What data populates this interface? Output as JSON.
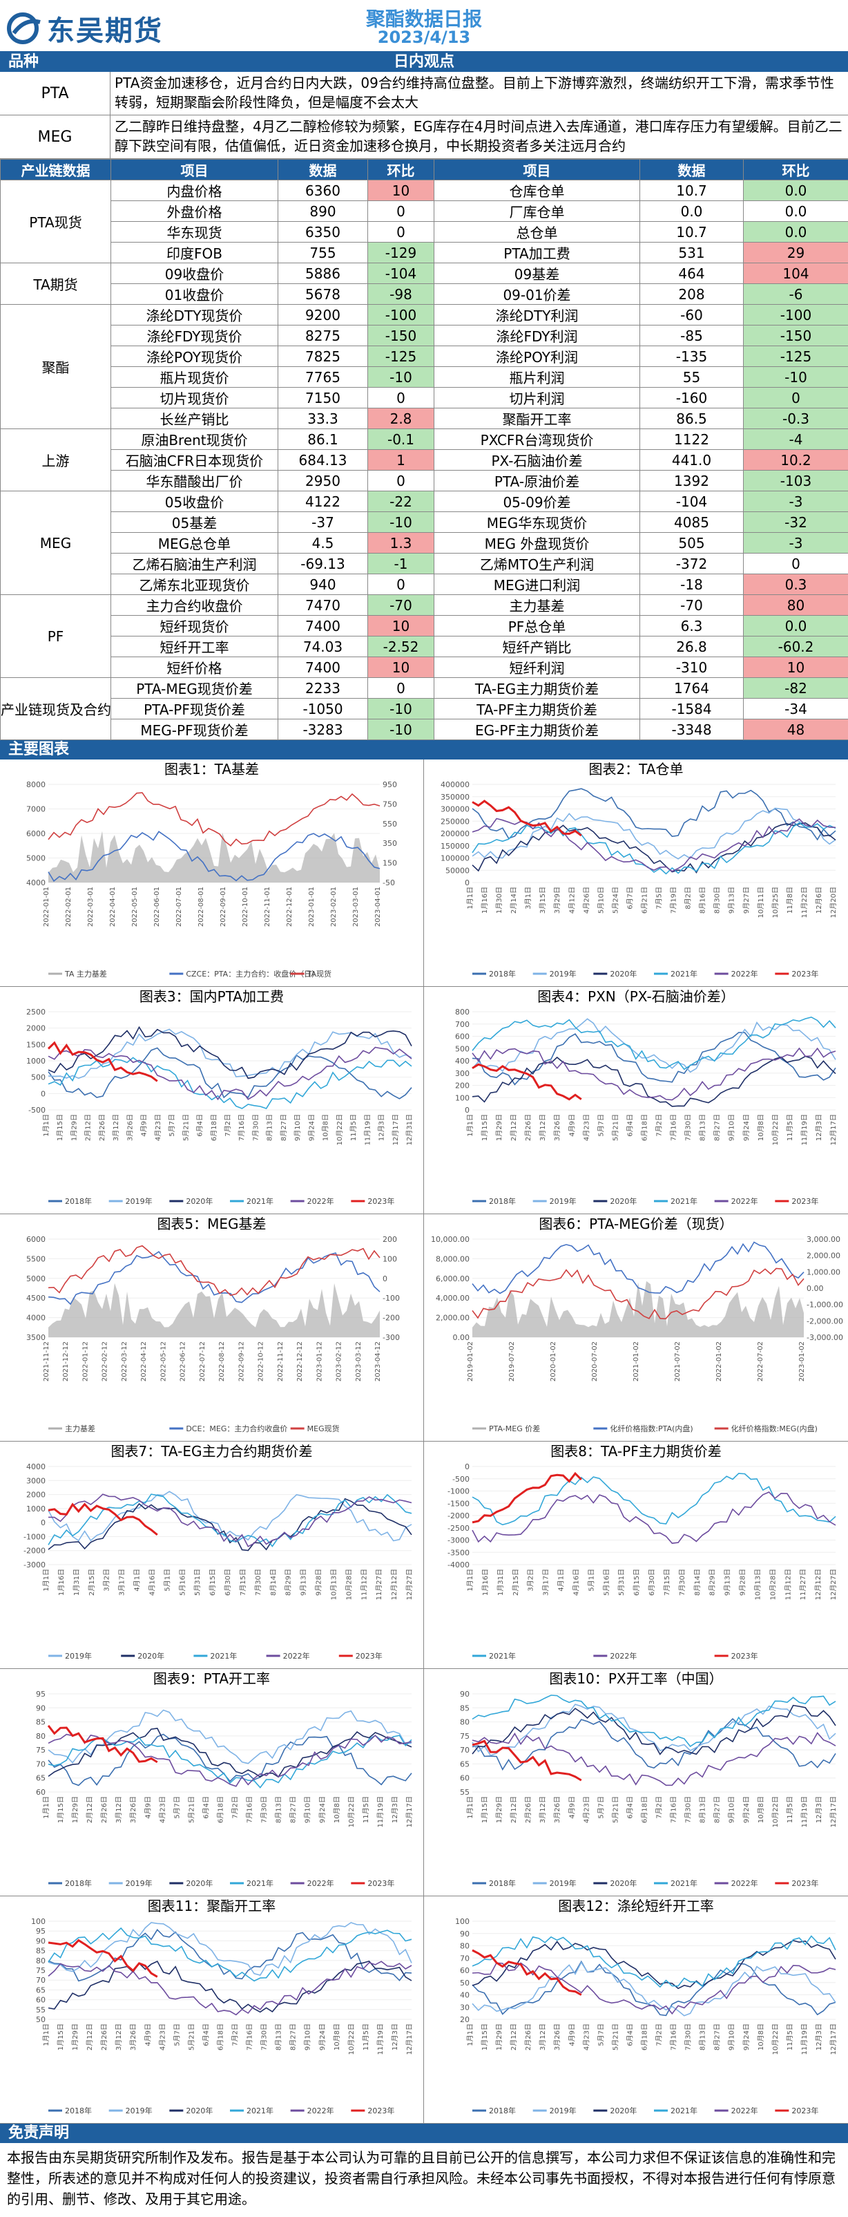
{
  "header": {
    "company": "东吴期货",
    "title": "聚酯数据日报",
    "date": "2023/4/13"
  },
  "view_bar": {
    "left": "品种",
    "center": "日内观点"
  },
  "views": [
    {
      "name": "PTA",
      "text": "PTA资金加速移仓，近月合约日内大跌，09合约维持高位盘整。目前上下游博弈激烈，终端纺织开工下滑，需求季节性转弱，短期聚酯会阶段性降负，但是幅度不会太大"
    },
    {
      "name": "MEG",
      "text": "乙二醇昨日维持盘整，4月乙二醇检修较为频繁，EG库存在4月时间点进入去库通道，港口库存压力有望缓解。目前乙二醇下跌空间有限，估值偏低，近日资金加速移仓换月，中长期投资者多关注远月合约"
    }
  ],
  "table_headers": [
    "产业链数据",
    "项目",
    "数据",
    "环比",
    "项目",
    "数据",
    "环比"
  ],
  "groups": [
    {
      "name": "PTA现货",
      "rows": [
        [
          "内盘价格",
          "6360",
          "10",
          "up",
          "仓库仓单",
          "10.7",
          "0.0",
          "dn"
        ],
        [
          "外盘价格",
          "890",
          "0",
          "",
          "厂库仓单",
          "0.0",
          "0.0",
          ""
        ],
        [
          "华东现货",
          "6350",
          "0",
          "",
          "总仓单",
          "10.7",
          "0.0",
          "dn"
        ],
        [
          "印度FOB",
          "755",
          "-129",
          "dn",
          "PTA加工费",
          "531",
          "29",
          "up"
        ]
      ]
    },
    {
      "name": "TA期货",
      "rows": [
        [
          "09收盘价",
          "5886",
          "-104",
          "dn",
          "09基差",
          "464",
          "104",
          "up"
        ],
        [
          "01收盘价",
          "5678",
          "-98",
          "dn",
          "09-01价差",
          "208",
          "-6",
          "dn"
        ]
      ]
    },
    {
      "name": "聚酯",
      "rows": [
        [
          "涤纶DTY现货价",
          "9200",
          "-100",
          "dn",
          "涤纶DTY利润",
          "-60",
          "-100",
          "dn"
        ],
        [
          "涤纶FDY现货价",
          "8275",
          "-150",
          "dn",
          "涤纶FDY利润",
          "-85",
          "-150",
          "dn"
        ],
        [
          "涤纶POY现货价",
          "7825",
          "-125",
          "dn",
          "涤纶POY利润",
          "-135",
          "-125",
          "dn"
        ],
        [
          "瓶片现货价",
          "7765",
          "-10",
          "dn",
          "瓶片利润",
          "55",
          "-10",
          "dn"
        ],
        [
          "切片现货价",
          "7150",
          "0",
          "",
          "切片利润",
          "-160",
          "0",
          "dn"
        ],
        [
          "长丝产销比",
          "33.3",
          "2.8",
          "up",
          "聚酯开工率",
          "86.5",
          "-0.3",
          "dn"
        ]
      ]
    },
    {
      "name": "上游",
      "rows": [
        [
          "原油Brent现货价",
          "86.1",
          "-0.1",
          "dn",
          "PXCFR台湾现货价",
          "1122",
          "-4",
          "dn"
        ],
        [
          "石脑油CFR日本现货价",
          "684.13",
          "1",
          "up",
          "PX-石脑油价差",
          "441.0",
          "10.2",
          "up"
        ],
        [
          "华东醋酸出厂价",
          "2950",
          "0",
          "",
          "PTA-原油价差",
          "1392",
          "-103",
          "dn"
        ]
      ]
    },
    {
      "name": "MEG",
      "rows": [
        [
          "05收盘价",
          "4122",
          "-22",
          "dn",
          "05-09价差",
          "-104",
          "-3",
          "dn"
        ],
        [
          "05基差",
          "-37",
          "-10",
          "dn",
          "MEG华东现货价",
          "4085",
          "-32",
          "dn"
        ],
        [
          "MEG总仓单",
          "4.5",
          "1.3",
          "up",
          "MEG 外盘现货价",
          "505",
          "-3",
          "dn"
        ],
        [
          "乙烯石脑油生产利润",
          "-69.13",
          "-1",
          "dn",
          "乙烯MTO生产利润",
          "-372",
          "0",
          ""
        ],
        [
          "乙烯东北亚现货价",
          "940",
          "0",
          "",
          "MEG进口利润",
          "-18",
          "0.3",
          "up"
        ]
      ]
    },
    {
      "name": "PF",
      "rows": [
        [
          "主力合约收盘价",
          "7470",
          "-70",
          "dn",
          "主力基差",
          "-70",
          "80",
          "up"
        ],
        [
          "短纤现货价",
          "7400",
          "10",
          "up",
          "PF总仓单",
          "6.3",
          "0.0",
          "dn"
        ],
        [
          "短纤开工率",
          "74.03",
          "-2.52",
          "dn",
          "短纤产销比",
          "26.8",
          "-60.2",
          "dn"
        ],
        [
          "短纤价格",
          "7400",
          "10",
          "up",
          "短纤利润",
          "-310",
          "10",
          "up"
        ]
      ]
    },
    {
      "name": "产业链现货及合约价差",
      "rows": [
        [
          "PTA-MEG现货价差",
          "2233",
          "0",
          "",
          "TA-EG主力期货价差",
          "1764",
          "-82",
          "dn"
        ],
        [
          "PTA-PF现货价差",
          "-1050",
          "-10",
          "dn",
          "TA-PF主力期货价差",
          "-1584",
          "-34",
          ""
        ],
        [
          "MEG-PF现货价差",
          "-3283",
          "-10",
          "dn",
          "EG-PF主力期货价差",
          "-3348",
          "48",
          "up"
        ]
      ]
    }
  ],
  "charts_bar": "主要图表",
  "charts": [
    {
      "title": "图表1：TA基差",
      "legend": [
        "TA 主力基差",
        "CZCE：PTA：主力合约：收盘价（日）",
        "TA现货"
      ],
      "xticks": [
        "2022-01-01",
        "2022-02-01",
        "2022-03-01",
        "2022-04-01",
        "2022-05-01",
        "2022-06-01",
        "2022-07-01",
        "2022-08-01",
        "2022-09-01",
        "2022-10-01",
        "2022-11-01",
        "2022-12-01",
        "2023-01-01",
        "2023-02-01",
        "2023-03-01",
        "2023-04-01"
      ],
      "yleft": [
        "8000",
        "7000",
        "6000",
        "5000",
        "4000"
      ],
      "yright": [
        "950",
        "750",
        "550",
        "350",
        "150",
        "-50"
      ]
    },
    {
      "title": "图表2：TA仓单",
      "legend": [
        "2018年",
        "2019年",
        "2020年",
        "2021年",
        "2022年",
        "2023年"
      ],
      "xticks": [
        "1月1日",
        "1月16日",
        "1月30日",
        "2月14日",
        "3月1日",
        "3月15日",
        "3月29日",
        "4月12日",
        "4月26日",
        "5月10日",
        "5月24日",
        "6月7日",
        "6月21日",
        "7月5日",
        "7月19日",
        "8月2日",
        "8月16日",
        "8月30日",
        "9月13日",
        "9月27日",
        "10月11日",
        "10月25日",
        "11月8日",
        "11月22日",
        "12月6日",
        "12月20日"
      ],
      "yleft": [
        "400000",
        "350000",
        "300000",
        "250000",
        "200000",
        "150000",
        "100000",
        "50000",
        "0"
      ]
    },
    {
      "title": "图表3：国内PTA加工费",
      "legend": [
        "2018年",
        "2019年",
        "2020年",
        "2021年",
        "2022年",
        "2023年"
      ],
      "xticks": [
        "1月1日",
        "1月15日",
        "1月29日",
        "2月12日",
        "2月26日",
        "3月12日",
        "3月26日",
        "4月9日",
        "4月23日",
        "5月7日",
        "5月21日",
        "6月4日",
        "6月18日",
        "7月2日",
        "7月16日",
        "7月30日",
        "8月13日",
        "8月27日",
        "9月10日",
        "9月24日",
        "10月8日",
        "10月22日",
        "11月5日",
        "11月19日",
        "12月3日",
        "12月17日",
        "12月31日"
      ],
      "yleft": [
        "2500",
        "2000",
        "1500",
        "1000",
        "500",
        "0",
        "-500"
      ]
    },
    {
      "title": "图表4：PXN（PX-石脑油价差）",
      "legend": [
        "2018年",
        "2019年",
        "2020年",
        "2021年",
        "2022年",
        "2023年"
      ],
      "xticks": [
        "1月1日",
        "1月15日",
        "1月29日",
        "2月12日",
        "2月26日",
        "3月12日",
        "3月26日",
        "4月9日",
        "4月23日",
        "5月7日",
        "5月21日",
        "6月4日",
        "6月18日",
        "7月2日",
        "7月16日",
        "7月30日",
        "8月13日",
        "8月27日",
        "9月10日",
        "9月24日",
        "10月8日",
        "10月22日",
        "11月5日",
        "11月19日",
        "12月3日",
        "12月17日"
      ],
      "yleft": [
        "800",
        "700",
        "600",
        "500",
        "400",
        "300",
        "200",
        "100",
        "0"
      ]
    },
    {
      "title": "图表5：MEG基差",
      "legend": [
        "主力基差",
        "DCE：MEG：主力合约收盘价",
        "MEG现货"
      ],
      "xticks": [
        "2021-11-12",
        "2021-12-12",
        "2022-01-12",
        "2022-02-12",
        "2022-03-12",
        "2022-04-12",
        "2022-05-12",
        "2022-06-12",
        "2022-07-12",
        "2022-08-12",
        "2022-09-12",
        "2022-10-12",
        "2022-11-12",
        "2022-12-12",
        "2023-01-12",
        "2023-02-12",
        "2023-03-12",
        "2023-04-12"
      ],
      "yleft": [
        "6000",
        "5500",
        "5000",
        "4500",
        "4000",
        "3500"
      ],
      "yright": [
        "200",
        "100",
        "0",
        "-100",
        "-200",
        "-300"
      ]
    },
    {
      "title": "图表6：PTA-MEG价差（现货）",
      "legend": [
        "PTA-MEG 价差",
        "化纤价格指数:PTA(内盘)",
        "化纤价格指数:MEG(内盘)"
      ],
      "xticks": [
        "2019-01-02",
        "2019-07-02",
        "2020-01-02",
        "2020-07-02",
        "2021-01-02",
        "2021-07-02",
        "2022-01-02",
        "2022-07-02",
        "2023-01-02"
      ],
      "yleft": [
        "10,000.00",
        "8,000.00",
        "6,000.00",
        "4,000.00",
        "2,000.00",
        "0.00"
      ],
      "yright": [
        "3,000.00",
        "2,000.00",
        "1,000.00",
        "0.00",
        "-1,000.00",
        "-2,000.00",
        "-3,000.00"
      ]
    },
    {
      "title": "图表7：TA-EG主力合约期货价差",
      "legend": [
        "2019年",
        "2020年",
        "2021年",
        "2022年",
        "2023年"
      ],
      "xticks": [
        "1月1日",
        "1月16日",
        "1月31日",
        "2月15日",
        "3月2日",
        "3月17日",
        "4月1日",
        "4月16日",
        "5月1日",
        "5月16日",
        "5月31日",
        "6月15日",
        "6月30日",
        "7月15日",
        "7月30日",
        "8月14日",
        "8月29日",
        "9月13日",
        "9月28日",
        "10月13日",
        "10月28日",
        "11月12日",
        "11月27日",
        "12月12日",
        "12月27日"
      ],
      "yleft": [
        "4000",
        "3000",
        "2000",
        "1000",
        "0",
        "-1000",
        "-2000",
        "-3000"
      ]
    },
    {
      "title": "图表8：TA-PF主力期货价差",
      "legend": [
        "2021年",
        "2022年",
        "2023年"
      ],
      "xticks": [
        "1月1日",
        "1月16日",
        "1月31日",
        "2月15日",
        "3月2日",
        "3月17日",
        "4月1日",
        "4月16日",
        "5月1日",
        "5月16日",
        "5月31日",
        "6月15日",
        "6月30日",
        "7月15日",
        "7月30日",
        "8月14日",
        "8月29日",
        "9月13日",
        "9月28日",
        "10月13日",
        "10月28日",
        "11月12日",
        "11月27日",
        "12月12日",
        "12月27日"
      ],
      "yleft": [
        "0",
        "-500",
        "-1000",
        "-1500",
        "-2000",
        "-2500",
        "-3000",
        "-3500",
        "-4000"
      ]
    },
    {
      "title": "图表9：PTA开工率",
      "legend": [
        "2018年",
        "2019年",
        "2020年",
        "2021年",
        "2022年",
        "2023年"
      ],
      "xticks": [
        "1月1日",
        "1月15日",
        "1月29日",
        "2月12日",
        "2月26日",
        "3月12日",
        "3月26日",
        "4月9日",
        "4月23日",
        "5月7日",
        "5月21日",
        "6月4日",
        "6月18日",
        "7月2日",
        "7月16日",
        "7月30日",
        "8月13日",
        "8月27日",
        "9月10日",
        "9月24日",
        "10月8日",
        "10月22日",
        "11月5日",
        "11月19日",
        "12月3日",
        "12月17日"
      ],
      "yleft": [
        "95",
        "90",
        "85",
        "80",
        "75",
        "70",
        "65",
        "60"
      ]
    },
    {
      "title": "图表10：PX开工率（中国）",
      "legend": [
        "2018年",
        "2019年",
        "2020年",
        "2021年",
        "2022年",
        "2023年"
      ],
      "xticks": [
        "1月1日",
        "1月15日",
        "1月29日",
        "2月12日",
        "2月26日",
        "3月12日",
        "3月26日",
        "4月9日",
        "4月23日",
        "5月7日",
        "5月21日",
        "6月4日",
        "6月18日",
        "7月2日",
        "7月16日",
        "7月30日",
        "8月13日",
        "8月27日",
        "9月10日",
        "9月24日",
        "10月8日",
        "10月22日",
        "11月5日",
        "11月19日",
        "12月3日",
        "12月17日"
      ],
      "yleft": [
        "90",
        "85",
        "80",
        "75",
        "70",
        "65",
        "60",
        "55"
      ]
    },
    {
      "title": "图表11：聚酯开工率",
      "legend": [
        "2018年",
        "2019年",
        "2020年",
        "2021年",
        "2022年",
        "2023年"
      ],
      "xticks": [
        "1月1日",
        "1月15日",
        "1月29日",
        "2月12日",
        "2月26日",
        "3月12日",
        "3月26日",
        "4月9日",
        "4月23日",
        "5月7日",
        "5月21日",
        "6月4日",
        "6月18日",
        "7月2日",
        "7月16日",
        "7月30日",
        "8月13日",
        "8月27日",
        "9月10日",
        "9月24日",
        "10月8日",
        "10月22日",
        "11月5日",
        "11月19日",
        "12月3日",
        "12月17日"
      ],
      "yleft": [
        "100",
        "95",
        "90",
        "85",
        "80",
        "75",
        "70",
        "65",
        "60",
        "55",
        "50"
      ]
    },
    {
      "title": "图表12：涤纶短纤开工率",
      "legend": [
        "2018年",
        "2019年",
        "2020年",
        "2021年",
        "2022年",
        "2023年"
      ],
      "xticks": [
        "1月1日",
        "1月15日",
        "1月29日",
        "2月12日",
        "2月26日",
        "3月12日",
        "3月26日",
        "4月9日",
        "4月23日",
        "5月7日",
        "5月21日",
        "6月4日",
        "6月18日",
        "7月2日",
        "7月16日",
        "7月30日",
        "8月13日",
        "8月27日",
        "9月10日",
        "9月24日",
        "10月8日",
        "10月22日",
        "11月5日",
        "11月19日",
        "12月3日",
        "12月17日"
      ],
      "yleft": [
        "100",
        "90",
        "80",
        "70",
        "60",
        "50",
        "40",
        "30",
        "20"
      ]
    }
  ],
  "series_colors": {
    "2018": "#3b6fb0",
    "2019": "#7fb3e6",
    "2020": "#1f2f66",
    "2021": "#32a7d8",
    "2022": "#6d4c9e",
    "2023": "#e02020",
    "grey": "#b0b0b0",
    "blue": "#4472c4",
    "red": "#d04040"
  },
  "disclaimer": {
    "title": "免责声明",
    "text": "本报告由东吴期货研究所制作及发布。报告是基于本公司认为可靠的且目前已公开的信息撰写，本公司力求但不保证该信息的准确性和完整性，所表述的意见并不构成对任何人的投资建议，投资者需自行承担风险。未经本公司事先书面授权，不得对本报告进行任何有悖原意的引用、删节、修改、及用于其它用途。"
  }
}
